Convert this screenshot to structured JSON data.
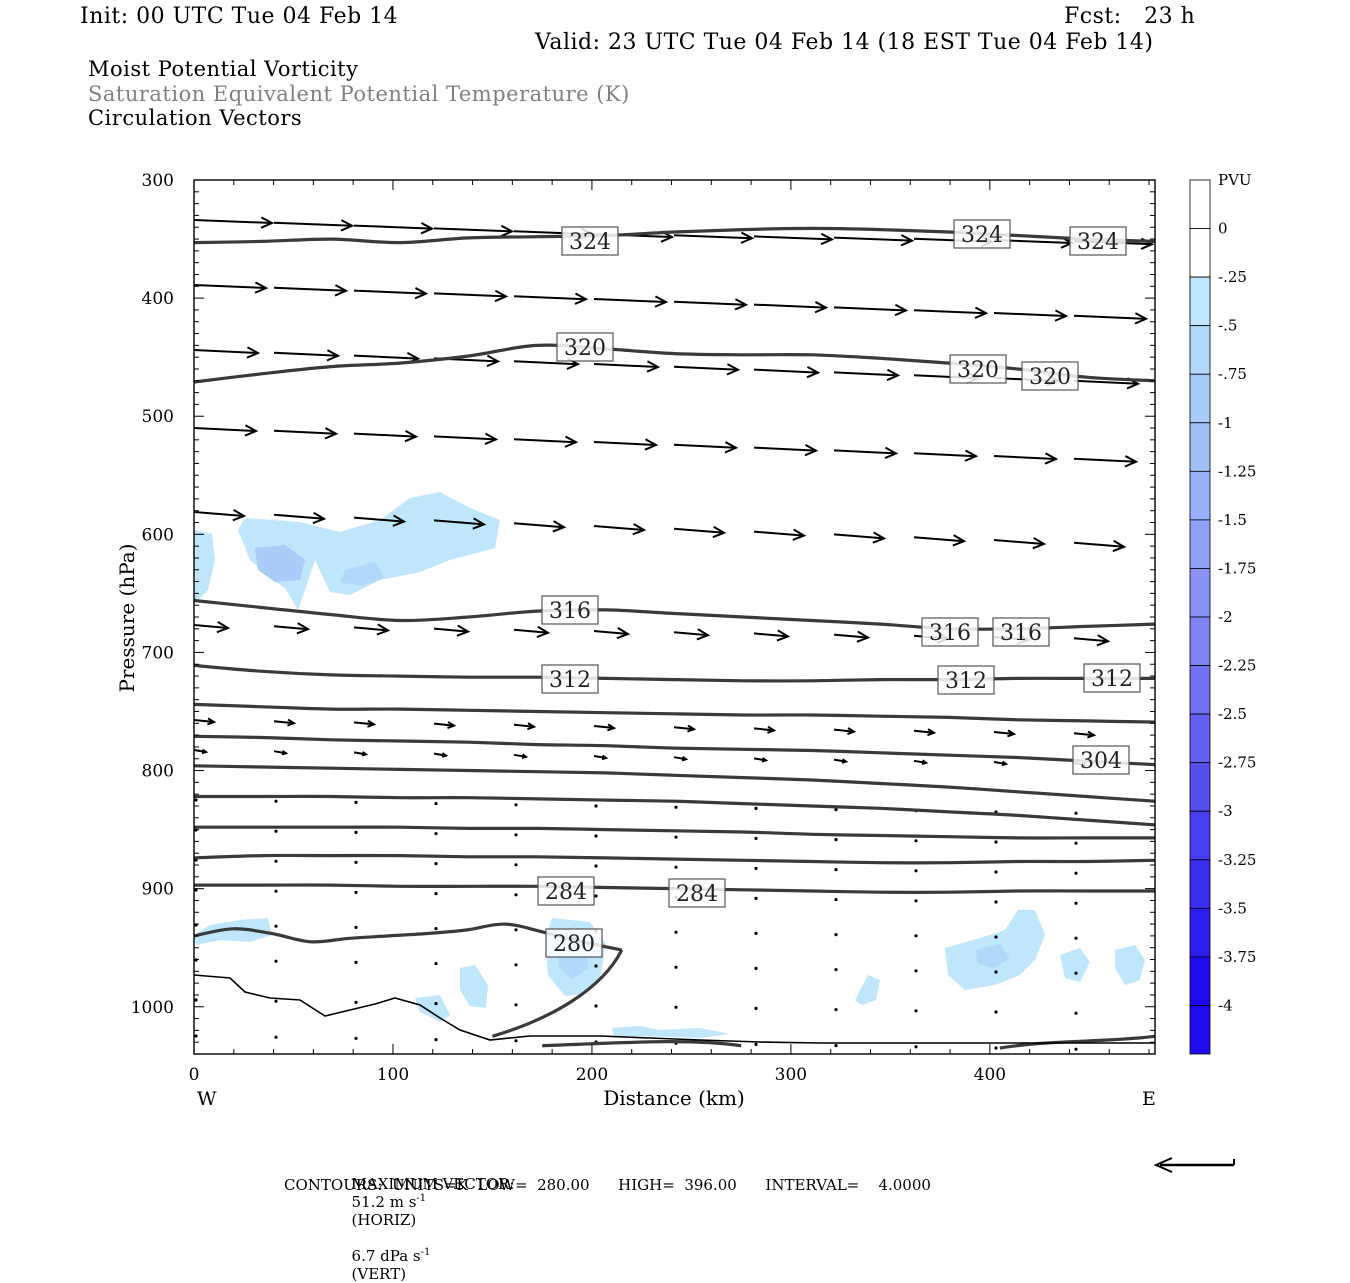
{
  "header": {
    "init": "Init: 00 UTC Tue 04 Feb 14",
    "fcst": "Fcst:   23 h",
    "valid": "Valid: 23 UTC Tue 04 Feb 14 (18 EST Tue 04 Feb 14)"
  },
  "titles": {
    "line1": "Moist Potential Vorticity",
    "line2": "Saturation Equivalent Potential Temperature (K)",
    "line3": "Circulation Vectors",
    "line2_color": "#808080"
  },
  "footer": {
    "max_vector_label": "MAXIMUM VECTOR:",
    "max_vector_horiz": "51.2 m s",
    "horiz_tag": "(HORIZ)",
    "max_vector_vert": "6.7 dPa s",
    "vert_tag": "(VERT)",
    "exp": "-1",
    "contours": "CONTOURS:  UNITS=K  LOW=  280.00      HIGH=  396.00      INTERVAL=    4.0000"
  },
  "chart_data": {
    "type": "cross-section",
    "xlabel": "Distance (km)",
    "ylabel": "Pressure (hPa)",
    "xlim": [
      0,
      483
    ],
    "ylim": [
      300,
      1040
    ],
    "x_ticks": [
      "0",
      "100",
      "200",
      "300",
      "400"
    ],
    "y_ticks": [
      "300",
      "400",
      "500",
      "600",
      "700",
      "800",
      "900",
      "1000"
    ],
    "left_end_label": "W",
    "right_end_label": "E",
    "colorbar": {
      "title": "PVU",
      "labels": [
        "0",
        "-.25",
        "-.5",
        "-.75",
        "-1",
        "-1.25",
        "-1.5",
        "-1.75",
        "-2",
        "-2.25",
        "-2.5",
        "-2.75",
        "-3",
        "-3.25",
        "-3.5",
        "-3.75",
        "-4"
      ],
      "colors": [
        "#ffffff",
        "#ffffff",
        "#bfe6fb",
        "#b2d9fa",
        "#a9ccf9",
        "#a0bef8",
        "#98b0f7",
        "#90a1f6",
        "#8892f5",
        "#7d82f4",
        "#7071f3",
        "#6360f2",
        "#554ff1",
        "#473ef0",
        "#392df0",
        "#2b1cef",
        "#1d0bee"
      ]
    },
    "theta_contours": [
      {
        "value": 324,
        "pressure": [
          353,
          352,
          350,
          353,
          349,
          348,
          347,
          344,
          342,
          341,
          342,
          344,
          347,
          350,
          352
        ],
        "labels": [
          "324",
          "324",
          "324"
        ]
      },
      {
        "value": 320,
        "pressure": [
          471,
          464,
          458,
          455,
          449,
          440,
          443,
          447,
          448,
          448,
          451,
          455,
          460,
          467,
          470
        ],
        "labels": [
          "320",
          "320",
          "320"
        ]
      },
      {
        "value": 316,
        "pressure": [
          656,
          662,
          668,
          673,
          670,
          665,
          664,
          667,
          670,
          673,
          676,
          680,
          680,
          678,
          676
        ],
        "labels": [
          "316",
          "316",
          "316"
        ]
      },
      {
        "value": 312,
        "pressure": [
          711,
          716,
          719,
          720,
          721,
          721,
          722,
          723,
          724,
          724,
          723,
          723,
          722,
          722,
          722
        ],
        "labels": [
          "312",
          "312",
          "312"
        ]
      },
      {
        "value": 308,
        "pressure": [
          744,
          746,
          748,
          748,
          749,
          750,
          751,
          752,
          753,
          753,
          754,
          755,
          757,
          758,
          759
        ],
        "labels": []
      },
      {
        "value": 304,
        "pressure": [
          771,
          772,
          774,
          775,
          776,
          778,
          779,
          781,
          782,
          783,
          785,
          787,
          789,
          792,
          795
        ],
        "labels": [
          "304"
        ]
      },
      {
        "value": 300,
        "pressure": [
          796,
          797,
          798,
          799,
          800,
          801,
          802,
          804,
          806,
          808,
          811,
          814,
          818,
          822,
          826
        ],
        "labels": []
      },
      {
        "value": 296,
        "pressure": [
          822,
          822,
          822,
          823,
          823,
          824,
          825,
          826,
          828,
          830,
          832,
          835,
          838,
          842,
          846
        ],
        "labels": []
      },
      {
        "value": 292,
        "pressure": [
          848,
          848,
          848,
          848,
          849,
          849,
          850,
          851,
          852,
          854,
          855,
          856,
          857,
          857,
          857
        ],
        "labels": []
      },
      {
        "value": 288,
        "pressure": [
          874,
          872,
          872,
          872,
          873,
          873,
          874,
          875,
          876,
          877,
          878,
          878,
          877,
          877,
          876
        ],
        "labels": []
      },
      {
        "value": 284,
        "pressure": [
          897,
          897,
          897,
          898,
          898,
          898,
          899,
          900,
          901,
          902,
          903,
          903,
          902,
          902,
          902
        ],
        "labels": [
          "284",
          "284"
        ]
      },
      {
        "value": 280,
        "pressure": [
          940,
          934,
          938,
          945,
          942,
          940,
          938,
          935,
          930,
          937,
          945,
          952
        ],
        "x_end": 215,
        "labels": [
          "280"
        ]
      }
    ],
    "mpv_shaded_regions": [
      {
        "name": "west-mid-level",
        "level": -0.75
      },
      {
        "name": "west-edge",
        "level": -0.5
      },
      {
        "name": "low-level-280",
        "level": -0.75
      },
      {
        "name": "low-level-east",
        "level": -0.75
      }
    ],
    "max_vector": {
      "horiz": 51.2,
      "vert": 6.7,
      "horiz_units": "m s-1",
      "vert_units": "dPa s-1"
    },
    "contour_info": {
      "units": "K",
      "low": 280.0,
      "high": 396.0,
      "interval": 4.0
    }
  }
}
